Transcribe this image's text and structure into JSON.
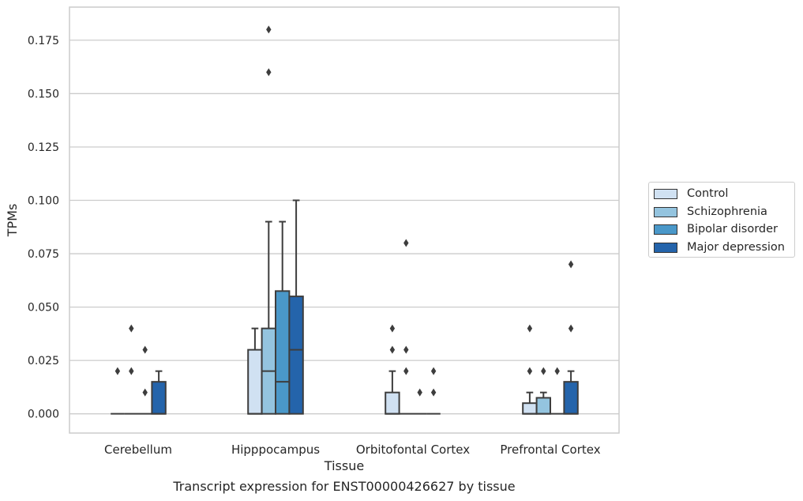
{
  "caption": "Transcript expression for ENST00000426627 by tissue",
  "chart_data": {
    "type": "box",
    "xlabel": "Tissue",
    "ylabel": "TPMs",
    "ylim": [
      -0.009,
      0.1905
    ],
    "yticks": [
      "0.000",
      "0.025",
      "0.050",
      "0.075",
      "0.100",
      "0.125",
      "0.150",
      "0.175"
    ],
    "ytick_values": [
      0,
      0.025,
      0.05,
      0.075,
      0.1,
      0.125,
      0.15,
      0.175
    ],
    "grid": "horizontal",
    "legend_position": "right",
    "categories": [
      "Cerebellum",
      "Hipppocampus",
      "Orbitofontal Cortex",
      "Prefrontal Cortex"
    ],
    "series": [
      {
        "name": "Control",
        "color": "#d0e1f2"
      },
      {
        "name": "Schizophrenia",
        "color": "#94c4df"
      },
      {
        "name": "Bipolar disorder",
        "color": "#4a98c9"
      },
      {
        "name": "Major depression",
        "color": "#2464ab"
      }
    ],
    "boxes": [
      [
        {
          "q1": 0,
          "median": 0,
          "q3": 0,
          "whisker_low": 0,
          "whisker_high": 0,
          "outliers": [
            0.02
          ]
        },
        {
          "q1": 0,
          "median": 0,
          "q3": 0,
          "whisker_low": 0,
          "whisker_high": 0,
          "outliers": [
            0.04,
            0.02
          ]
        },
        {
          "q1": 0,
          "median": 0,
          "q3": 0,
          "whisker_low": 0,
          "whisker_high": 0,
          "outliers": [
            0.03,
            0.01
          ]
        },
        {
          "q1": 0,
          "median": 0,
          "q3": 0.015,
          "whisker_low": 0,
          "whisker_high": 0.02,
          "outliers": []
        }
      ],
      [
        {
          "q1": 0,
          "median": 0,
          "q3": 0.03,
          "whisker_low": 0,
          "whisker_high": 0.04,
          "outliers": []
        },
        {
          "q1": 0,
          "median": 0.02,
          "q3": 0.04,
          "whisker_low": 0,
          "whisker_high": 0.09,
          "outliers": [
            0.16,
            0.18
          ]
        },
        {
          "q1": 0,
          "median": 0.015,
          "q3": 0.0575,
          "whisker_low": 0,
          "whisker_high": 0.09,
          "outliers": []
        },
        {
          "q1": 0,
          "median": 0.03,
          "q3": 0.055,
          "whisker_low": 0,
          "whisker_high": 0.1,
          "outliers": []
        }
      ],
      [
        {
          "q1": 0,
          "median": 0,
          "q3": 0.01,
          "whisker_low": 0,
          "whisker_high": 0.02,
          "outliers": [
            0.04,
            0.03
          ]
        },
        {
          "q1": 0,
          "median": 0,
          "q3": 0,
          "whisker_low": 0,
          "whisker_high": 0,
          "outliers": [
            0.08,
            0.03,
            0.02
          ]
        },
        {
          "q1": 0,
          "median": 0,
          "q3": 0,
          "whisker_low": 0,
          "whisker_high": 0,
          "outliers": [
            0.01
          ]
        },
        {
          "q1": 0,
          "median": 0,
          "q3": 0,
          "whisker_low": 0,
          "whisker_high": 0,
          "outliers": [
            0.02,
            0.01
          ]
        }
      ],
      [
        {
          "q1": 0,
          "median": 0,
          "q3": 0.005,
          "whisker_low": 0,
          "whisker_high": 0.01,
          "outliers": [
            0.04,
            0.02
          ]
        },
        {
          "q1": 0,
          "median": 0,
          "q3": 0.0075,
          "whisker_low": 0,
          "whisker_high": 0.01,
          "outliers": [
            0.02
          ]
        },
        {
          "q1": 0,
          "median": 0,
          "q3": 0,
          "whisker_low": 0,
          "whisker_high": 0,
          "outliers": [
            0.02
          ]
        },
        {
          "q1": 0,
          "median": 0,
          "q3": 0.015,
          "whisker_low": 0,
          "whisker_high": 0.02,
          "outliers": [
            0.07,
            0.04
          ]
        }
      ]
    ]
  }
}
